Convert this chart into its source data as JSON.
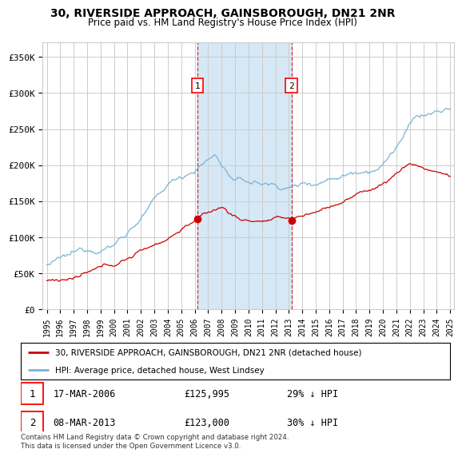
{
  "title": "30, RIVERSIDE APPROACH, GAINSBOROUGH, DN21 2NR",
  "subtitle": "Price paid vs. HM Land Registry's House Price Index (HPI)",
  "hpi_color": "#7ab3d4",
  "price_color": "#cc0000",
  "background_color": "#ffffff",
  "plot_bg_color": "#ffffff",
  "grid_color": "#cccccc",
  "highlight_color": "#d6e8f5",
  "sale1_date": 2006.21,
  "sale1_price": 125995,
  "sale2_date": 2013.19,
  "sale2_price": 123000,
  "ylim": [
    0,
    370000
  ],
  "xlim_start": 1994.7,
  "xlim_end": 2025.3,
  "legend_entries": [
    "30, RIVERSIDE APPROACH, GAINSBOROUGH, DN21 2NR (detached house)",
    "HPI: Average price, detached house, West Lindsey"
  ],
  "footnote": "Contains HM Land Registry data © Crown copyright and database right 2024.\nThis data is licensed under the Open Government Licence v3.0.",
  "yticks": [
    0,
    50000,
    100000,
    150000,
    200000,
    250000,
    300000,
    350000
  ],
  "ytick_labels": [
    "£0",
    "£50K",
    "£100K",
    "£150K",
    "£200K",
    "£250K",
    "£300K",
    "£350K"
  ]
}
